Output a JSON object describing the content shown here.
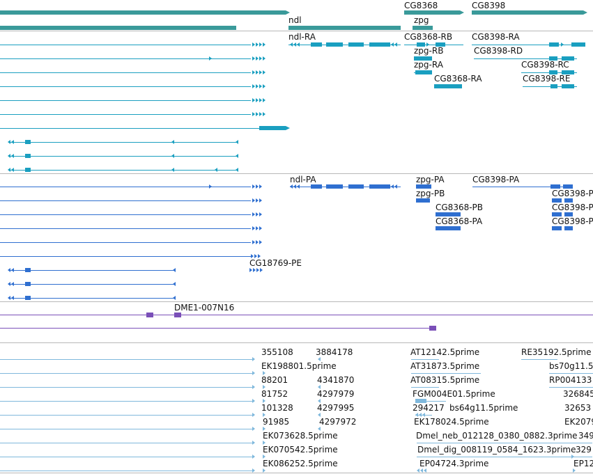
{
  "colors": {
    "gene": "#3a9a9a",
    "transcript": "#1a9fc0",
    "protein": "#2f6fd0",
    "clone": "#7a4fb8",
    "est": "#7fb8dc",
    "separator": "#b8b8b8",
    "text": "#111111"
  },
  "tracks": {
    "genes": {
      "labels": [
        "CG8368",
        "CG8398",
        "ndl",
        "zpg"
      ]
    },
    "transcripts": {
      "labels": [
        "ndl-RA",
        "CG8368-RB",
        "CG8398-RA",
        "zpg-RB",
        "CG8398-RD",
        "zpg-RA",
        "CG8398-RC",
        "CG8368-RA",
        "CG8398-RE"
      ]
    },
    "proteins": {
      "labels": [
        "ndl-PA",
        "zpg-PA",
        "CG8398-PA",
        "zpg-PB",
        "CG8398-P",
        "CG8368-PB",
        "CG8398-P",
        "CG8368-PA",
        "CG8398-P",
        "CG18769-PE"
      ]
    },
    "clones": {
      "labels": [
        "DME1-007N16"
      ]
    },
    "ests": {
      "labels": [
        "355108",
        "3884178",
        "AT12142.5prime",
        "RE35192.5prime",
        "EK198801.5prime",
        "AT31873.5prime",
        "bs70g11.5",
        "88201",
        "4341870",
        "AT08315.5prime",
        "RP004133",
        "81752",
        "4297979",
        "FGM004E01.5prime",
        "326845",
        "101328",
        "4297995",
        "294217",
        "bs64g11.5prime",
        "32653",
        "91985",
        "4297972",
        "EK178024.5prime",
        "EK2079",
        "EK073628.5prime",
        "Dmel_neb_012128_0380_0882.3prime",
        "349",
        "EK070542.5prime",
        "Dmel_dig_008119_0584_1623.3prime",
        "329",
        "EK086252.5prime",
        "EP04724.3prime",
        "EP12"
      ]
    }
  }
}
